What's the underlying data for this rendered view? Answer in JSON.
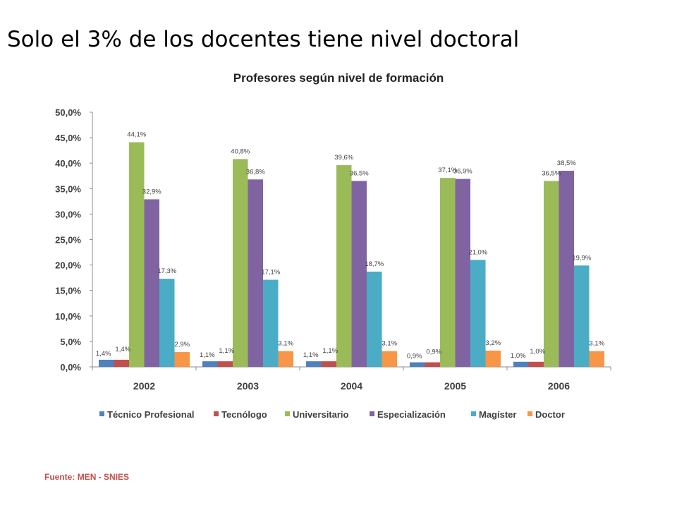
{
  "slide": {
    "title": "Solo el 3% de los docentes tiene nivel doctoral",
    "source_prefix": "Fuente:",
    "source_value": "MEN - SNIES"
  },
  "chart_data": {
    "type": "bar",
    "title": "Profesores según nivel de formación",
    "xlabel": "",
    "ylabel": "",
    "categories": [
      "2002",
      "2003",
      "2004",
      "2005",
      "2006"
    ],
    "ylim": [
      0,
      50
    ],
    "yticks": [
      "0,0%",
      "5,0%",
      "10,0%",
      "15,0%",
      "20,0%",
      "25,0%",
      "30,0%",
      "35,0%",
      "40,0%",
      "45,0%",
      "50,0%"
    ],
    "grid": false,
    "legend_position": "bottom",
    "series": [
      {
        "name": "Técnico Profesional",
        "color": "#4f81bd",
        "values": [
          1.4,
          1.1,
          1.1,
          0.9,
          1.0
        ],
        "labels": [
          "1,4%",
          "1,1%",
          "1,1%",
          "0,9%",
          "1,0%"
        ]
      },
      {
        "name": "Tecnólogo",
        "color": "#c0504d",
        "values": [
          1.4,
          1.1,
          1.1,
          0.9,
          1.0
        ],
        "labels": [
          "1,4%",
          "1,1%",
          "1,1%",
          "0,9%",
          "1,0%"
        ]
      },
      {
        "name": "Universitario",
        "color": "#9bbb59",
        "values": [
          44.1,
          40.8,
          39.6,
          37.1,
          36.5
        ],
        "labels": [
          "44,1%",
          "40,8%",
          "39,6%",
          "37,1%",
          "36,5%"
        ]
      },
      {
        "name": "Especialización",
        "color": "#8064a2",
        "values": [
          32.9,
          36.8,
          36.5,
          36.9,
          38.5
        ],
        "labels": [
          "32,9%",
          "36,8%",
          "36,5%",
          "36,9%",
          "38,5%"
        ]
      },
      {
        "name": "Magíster",
        "color": "#4bacc6",
        "values": [
          17.3,
          17.1,
          18.7,
          21.0,
          19.9
        ],
        "labels": [
          "17,3%",
          "17,1%",
          "18,7%",
          "21,0%",
          "19,9%"
        ]
      },
      {
        "name": "Doctor",
        "color": "#f79646",
        "values": [
          2.9,
          3.1,
          3.1,
          3.2,
          3.1
        ],
        "labels": [
          "2,9%",
          "3,1%",
          "3,1%",
          "3,2%",
          "3,1%"
        ]
      }
    ]
  }
}
